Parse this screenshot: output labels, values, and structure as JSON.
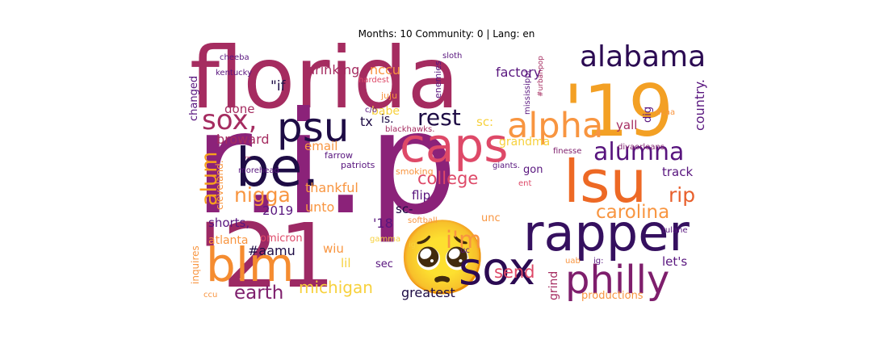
{
  "chart_data": {
    "type": "wordcloud",
    "title": "Months: 10 Community: 0 | Lang: en",
    "words": [
      {
        "text": "florida",
        "color": "#a52c60"
      },
      {
        "text": "r.i.p",
        "color": "#8b2279"
      },
      {
        "text": "'21",
        "color": "#9c2964"
      },
      {
        "text": "🥺",
        "color": "#d44842"
      },
      {
        "text": "'19",
        "color": "#f3a024"
      },
      {
        "text": "alabama",
        "color": "#2b0a52"
      },
      {
        "text": "psu",
        "color": "#1e0c45"
      },
      {
        "text": "sox,",
        "color": "#a52c60"
      },
      {
        "text": "be.",
        "color": "#1e0c45"
      },
      {
        "text": "caps",
        "color": "#de4968"
      },
      {
        "text": "alpha",
        "color": "#f89540"
      },
      {
        "text": "lsu",
        "color": "#ed6925"
      },
      {
        "text": "alumna",
        "color": "#58157e"
      },
      {
        "text": "rapper",
        "color": "#35105f"
      },
      {
        "text": "sox",
        "color": "#2b0a52"
      },
      {
        "text": "philly",
        "color": "#7e1e6c"
      },
      {
        "text": "blm",
        "color": "#f58c30"
      },
      {
        "text": "rest",
        "color": "#1e0c45"
      },
      {
        "text": "college",
        "color": "#de4968"
      },
      {
        "text": "nigga",
        "color": "#f89540"
      },
      {
        "text": "alum",
        "color": "#f7a11c"
      },
      {
        "text": "carolina",
        "color": "#f89540"
      },
      {
        "text": "rip",
        "color": "#e8602d"
      },
      {
        "text": "track",
        "color": "#58157e"
      },
      {
        "text": "country.",
        "color": "#58157e"
      },
      {
        "text": "yall",
        "color": "#a52c60"
      },
      {
        "text": "dig",
        "color": "#58157e"
      },
      {
        "text": "ncaa",
        "color": "#f89540"
      },
      {
        "text": "divaorleans.",
        "color": "#7e1e6c"
      },
      {
        "text": "finesse",
        "color": "#7e1e6c"
      },
      {
        "text": "factory",
        "color": "#58157e"
      },
      {
        "text": "drinking",
        "color": "#a52c60"
      },
      {
        "text": "nccu",
        "color": "#f89540"
      },
      {
        "text": "\"if",
        "color": "#1e0c45"
      },
      {
        "text": "done",
        "color": "#a52c60"
      },
      {
        "text": "changed",
        "color": "#58157e"
      },
      {
        "text": "cheeba",
        "color": "#58157e"
      },
      {
        "text": "kentucky",
        "color": "#58157e"
      },
      {
        "text": "hardest",
        "color": "#de4968"
      },
      {
        "text": "sloth",
        "color": "#58157e"
      },
      {
        "text": "enemies",
        "color": "#58157e"
      },
      {
        "text": "juju",
        "color": "#f89540"
      },
      {
        "text": "babe",
        "color": "#f7d13d"
      },
      {
        "text": "mississippi",
        "color": "#58157e"
      },
      {
        "text": "#urbanpop",
        "color": "#a52c60"
      },
      {
        "text": "c/o",
        "color": "#58157e"
      },
      {
        "text": "tx",
        "color": "#1e0c45"
      },
      {
        "text": "is.",
        "color": "#1e0c45"
      },
      {
        "text": "sc:",
        "color": "#f7d13d"
      },
      {
        "text": "blackhawks.",
        "color": "#a52c60"
      },
      {
        "text": "grandma",
        "color": "#f7d13d"
      },
      {
        "text": "broward",
        "color": "#a52c60"
      },
      {
        "text": "email",
        "color": "#f89540"
      },
      {
        "text": "farrow",
        "color": "#58157e"
      },
      {
        "text": "patriots",
        "color": "#58157e"
      },
      {
        "text": "smoking",
        "color": "#f89540"
      },
      {
        "text": "giants.",
        "color": "#58157e"
      },
      {
        "text": "gon",
        "color": "#58157e"
      },
      {
        "text": "ent",
        "color": "#de4968"
      },
      {
        "text": "cleveland.",
        "color": "#f89540"
      },
      {
        "text": "morehead",
        "color": "#58157e"
      },
      {
        "text": "™",
        "color": "#a52c60"
      },
      {
        "text": "thankful",
        "color": "#f89540"
      },
      {
        "text": "flip",
        "color": "#58157e"
      },
      {
        "text": "unto",
        "color": "#f89540"
      },
      {
        "text": "sc-",
        "color": "#1e0c45"
      },
      {
        "text": "softball",
        "color": "#f89540"
      },
      {
        "text": "2019",
        "color": "#58157e"
      },
      {
        "text": "shorts,",
        "color": "#58157e"
      },
      {
        "text": "'18",
        "color": "#58157e"
      },
      {
        "text": "unc",
        "color": "#f89540"
      },
      {
        "text": "tulane",
        "color": "#58157e"
      },
      {
        "text": "atlanta",
        "color": "#f89540"
      },
      {
        "text": "omicron",
        "color": "#de4968"
      },
      {
        "text": "gamma",
        "color": "#f7d13d"
      },
      {
        "text": "i'm",
        "color": "#f89540"
      },
      {
        "text": "ig-",
        "color": "#f7d13d"
      },
      {
        "text": "#aamu",
        "color": "#1e0c45"
      },
      {
        "text": "wiu",
        "color": "#f89540"
      },
      {
        "text": "uc",
        "color": "#58157e"
      },
      {
        "text": "uab",
        "color": "#f89540"
      },
      {
        "text": "ig:",
        "color": "#58157e"
      },
      {
        "text": "let's",
        "color": "#58157e"
      },
      {
        "text": "inquires",
        "color": "#f89540"
      },
      {
        "text": "lil",
        "color": "#f7d13d"
      },
      {
        "text": "sec",
        "color": "#58157e"
      },
      {
        "text": "grind",
        "color": "#a52c60"
      },
      {
        "text": "send",
        "color": "#de4968"
      },
      {
        "text": "earth",
        "color": "#7e1e6c"
      },
      {
        "text": "michigan",
        "color": "#f7d13d"
      },
      {
        "text": "greatest",
        "color": "#1e0c45"
      },
      {
        "text": "productions",
        "color": "#f89540"
      },
      {
        "text": "ccu",
        "color": "#f89540"
      }
    ]
  }
}
